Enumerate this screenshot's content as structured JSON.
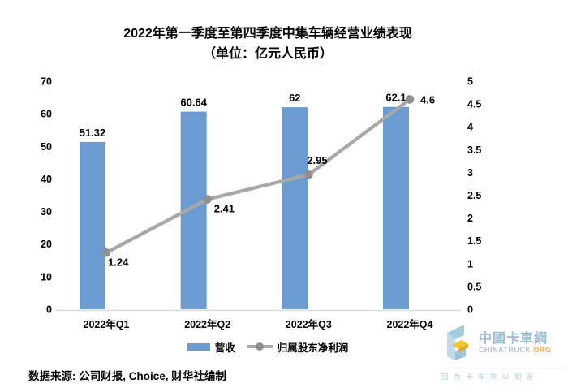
{
  "title": {
    "line1": "2022年第一季度至第四季度中集车辆经营业绩表现",
    "line2": "（单位：亿元人民币）"
  },
  "chart_data": {
    "type": "combo-bar-line",
    "title": "2022年第一季度至第四季度中集车辆经营业绩表现（单位：亿元人民币）",
    "categories": [
      "2022年Q1",
      "2022年Q2",
      "2022年Q3",
      "2022年Q4"
    ],
    "series": [
      {
        "name": "营收",
        "type": "bar",
        "axis": "left",
        "color": "#6B9BD1",
        "values": [
          51.32,
          60.64,
          62,
          62.1
        ],
        "labels": [
          "51.32",
          "60.64",
          "62",
          "62.1"
        ]
      },
      {
        "name": "归属股东净利润",
        "type": "line",
        "axis": "right",
        "color": "#A8A8A8",
        "marker_color": "#919191",
        "values": [
          1.24,
          2.41,
          2.95,
          4.6
        ],
        "labels": [
          "1.24",
          "2.41",
          "2.95",
          "4.6"
        ]
      }
    ],
    "axes": {
      "left": {
        "min": 0,
        "max": 70,
        "ticks": [
          0,
          10,
          20,
          30,
          40,
          50,
          60,
          70
        ]
      },
      "right": {
        "min": 0,
        "max": 5,
        "ticks": [
          0,
          0.5,
          1,
          1.5,
          2,
          2.5,
          3,
          3.5,
          4,
          4.5,
          5
        ]
      }
    },
    "grid": false,
    "legend_position": "bottom",
    "axis_line_color": "#D9D9D9",
    "xlabel": "",
    "ylabel": ""
  },
  "footer": {
    "source": "数据来源: 公司财报, Choice, 财华社编制"
  },
  "logo": {
    "site_name": "中國卡車網",
    "domain": "CHINATRUCK",
    "domain_suffix": "ORG",
    "slogan": "因为卡车所以朋友",
    "colors": {
      "cn_blue": "#9CC0D6",
      "en_gray": "#B5BFC6",
      "orange": "#F2A53C",
      "slogan_blue": "#AFCBDB"
    }
  }
}
